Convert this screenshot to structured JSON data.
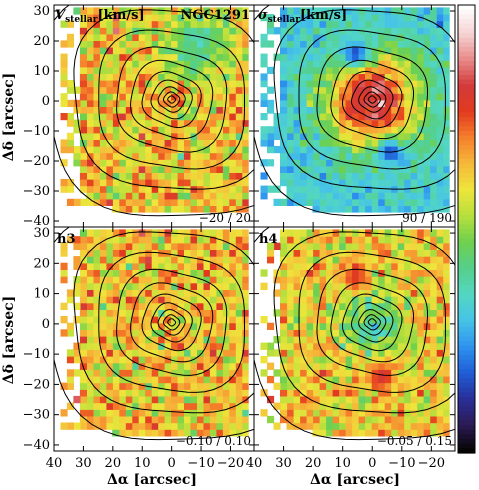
{
  "chart_data": [
    {
      "type": "heatmap",
      "panel": "top-left",
      "label": "V_stellar [km/s]",
      "label_main": "V",
      "label_sub": "stellar",
      "label_unit": "[km/s]",
      "object": "NGC1291",
      "range_text": "−20 / 20",
      "range": [
        -20,
        20
      ],
      "pattern": "noise-centered",
      "blue_patch": [
        -8,
        18
      ]
    },
    {
      "type": "heatmap",
      "panel": "top-right",
      "label": "σ_stellar [km/s]",
      "label_main": "σ",
      "label_sub": "stellar",
      "label_unit": "[km/s]",
      "range_text": "90 / 190",
      "range": [
        90,
        190
      ],
      "pattern": "central-peak",
      "spots": [
        {
          "x": 6,
          "y": 16,
          "level": 0.15
        },
        {
          "x": -6,
          "y": -17,
          "level": 0.15
        }
      ]
    },
    {
      "type": "heatmap",
      "panel": "bottom-left",
      "label": "h3",
      "range_text": "−0.10 / 0.10",
      "range": [
        -0.1,
        0.1
      ],
      "pattern": "noise-centered"
    },
    {
      "type": "heatmap",
      "panel": "bottom-right",
      "label": "h4",
      "range_text": "−0.05 / 0.15",
      "range": [
        -0.05,
        0.15
      ],
      "pattern": "central-dip",
      "spots": [
        {
          "x": 6,
          "y": 16,
          "level": 0.78
        },
        {
          "x": -3,
          "y": -17,
          "level": 0.82
        }
      ]
    }
  ],
  "axes": {
    "xlabel": "Δα [arcsec]",
    "ylabel": "Δδ [arcsec]",
    "xlim": [
      40,
      -28
    ],
    "ylim": [
      -42,
      32
    ],
    "xticks": [
      40,
      30,
      20,
      10,
      0,
      -10,
      -20
    ],
    "xtick_labels": [
      "40",
      "30",
      "20",
      "10",
      "0",
      "−10",
      "−20"
    ],
    "yticks": [
      30,
      20,
      10,
      0,
      -10,
      -20,
      -30,
      -40
    ],
    "ytick_labels": [
      "30",
      "20",
      "10",
      "0",
      "−10",
      "−20",
      "−30",
      "−40"
    ]
  },
  "contours": {
    "center": [
      0,
      0
    ],
    "radii": [
      1.2,
      2.5,
      4.2,
      6.5,
      9.5,
      13.5,
      18.5,
      25,
      33,
      43
    ]
  },
  "colorbar": {
    "orientation": "vertical",
    "position": "right",
    "colors": [
      "#050505",
      "#2b1a55",
      "#2a2f9a",
      "#1f5fd8",
      "#2f93ee",
      "#46c4e6",
      "#53d7c2",
      "#55cf8a",
      "#6fd04e",
      "#b6df3d",
      "#eee53b",
      "#f6b83a",
      "#f57f2b",
      "#e33a1f",
      "#d23a3a",
      "#e98a8a",
      "#f6d3d3",
      "#ffffff"
    ]
  }
}
